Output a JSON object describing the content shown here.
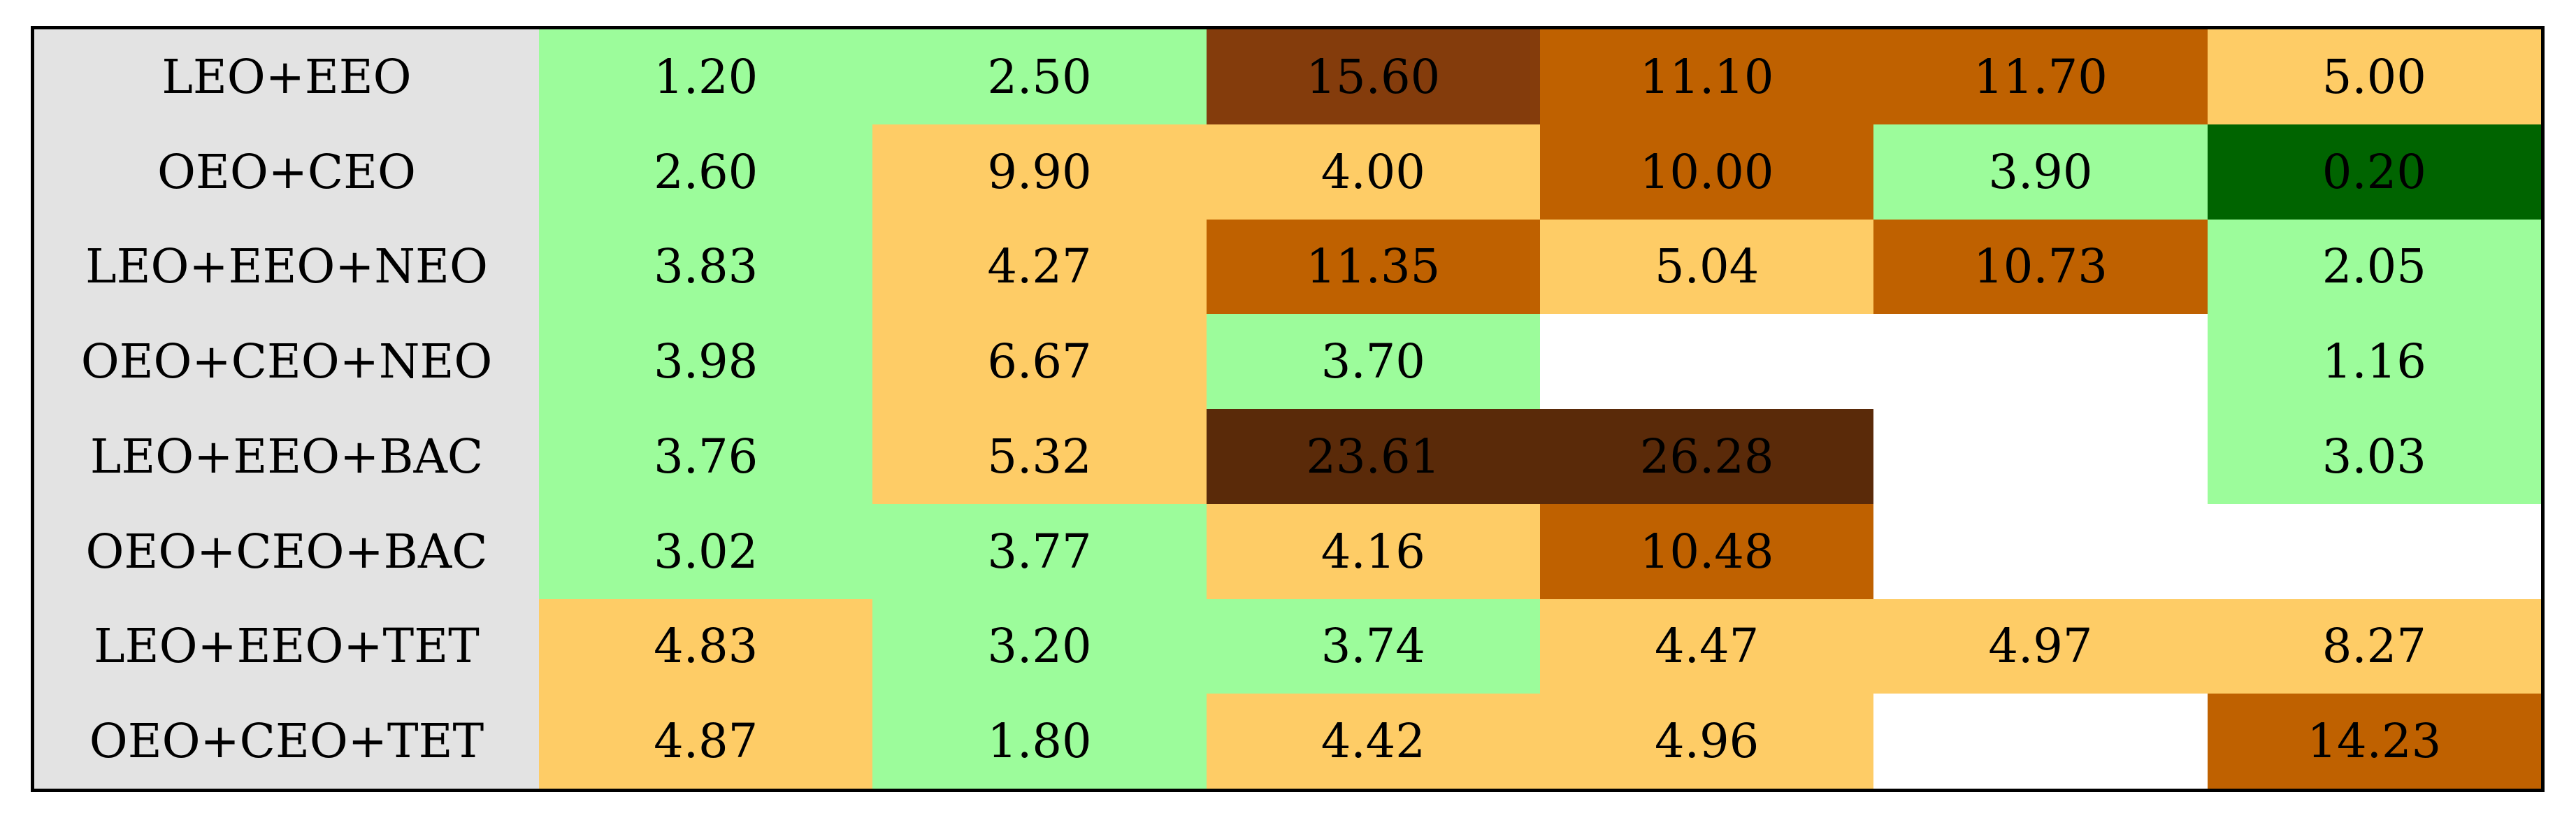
{
  "chart_data": {
    "type": "heatmap",
    "rows": [
      "LEO+EEO",
      "OEO+CEO",
      "LEO+EEO+NEO",
      "OEO+CEO+NEO",
      "LEO+EEO+BAC",
      "OEO+CEO+BAC",
      "LEO+EEO+TET",
      "OEO+CEO+TET"
    ],
    "values": [
      [
        1.2,
        2.5,
        15.6,
        11.1,
        11.7,
        5.0
      ],
      [
        2.6,
        9.9,
        4.0,
        10.0,
        3.9,
        0.2
      ],
      [
        3.83,
        4.27,
        11.35,
        5.04,
        10.73,
        2.05
      ],
      [
        3.98,
        6.67,
        3.7,
        null,
        null,
        1.16
      ],
      [
        3.76,
        5.32,
        23.61,
        26.28,
        null,
        3.03
      ],
      [
        3.02,
        3.77,
        4.16,
        10.48,
        null,
        null
      ],
      [
        4.83,
        3.2,
        3.74,
        4.47,
        4.97,
        8.27
      ],
      [
        4.87,
        1.8,
        4.42,
        4.96,
        null,
        14.23
      ]
    ],
    "colors": {
      "label_background": "#e3e3e3",
      "missing": "#ffffff",
      "darkgreen": "#006400",
      "lightgreen": "#9cfc9b",
      "light_orange": "#fecc66",
      "orange": "#bf6100",
      "brown": "#843c0c",
      "dark_brown": "#5a2a09"
    },
    "grid": false,
    "legend": "none"
  }
}
